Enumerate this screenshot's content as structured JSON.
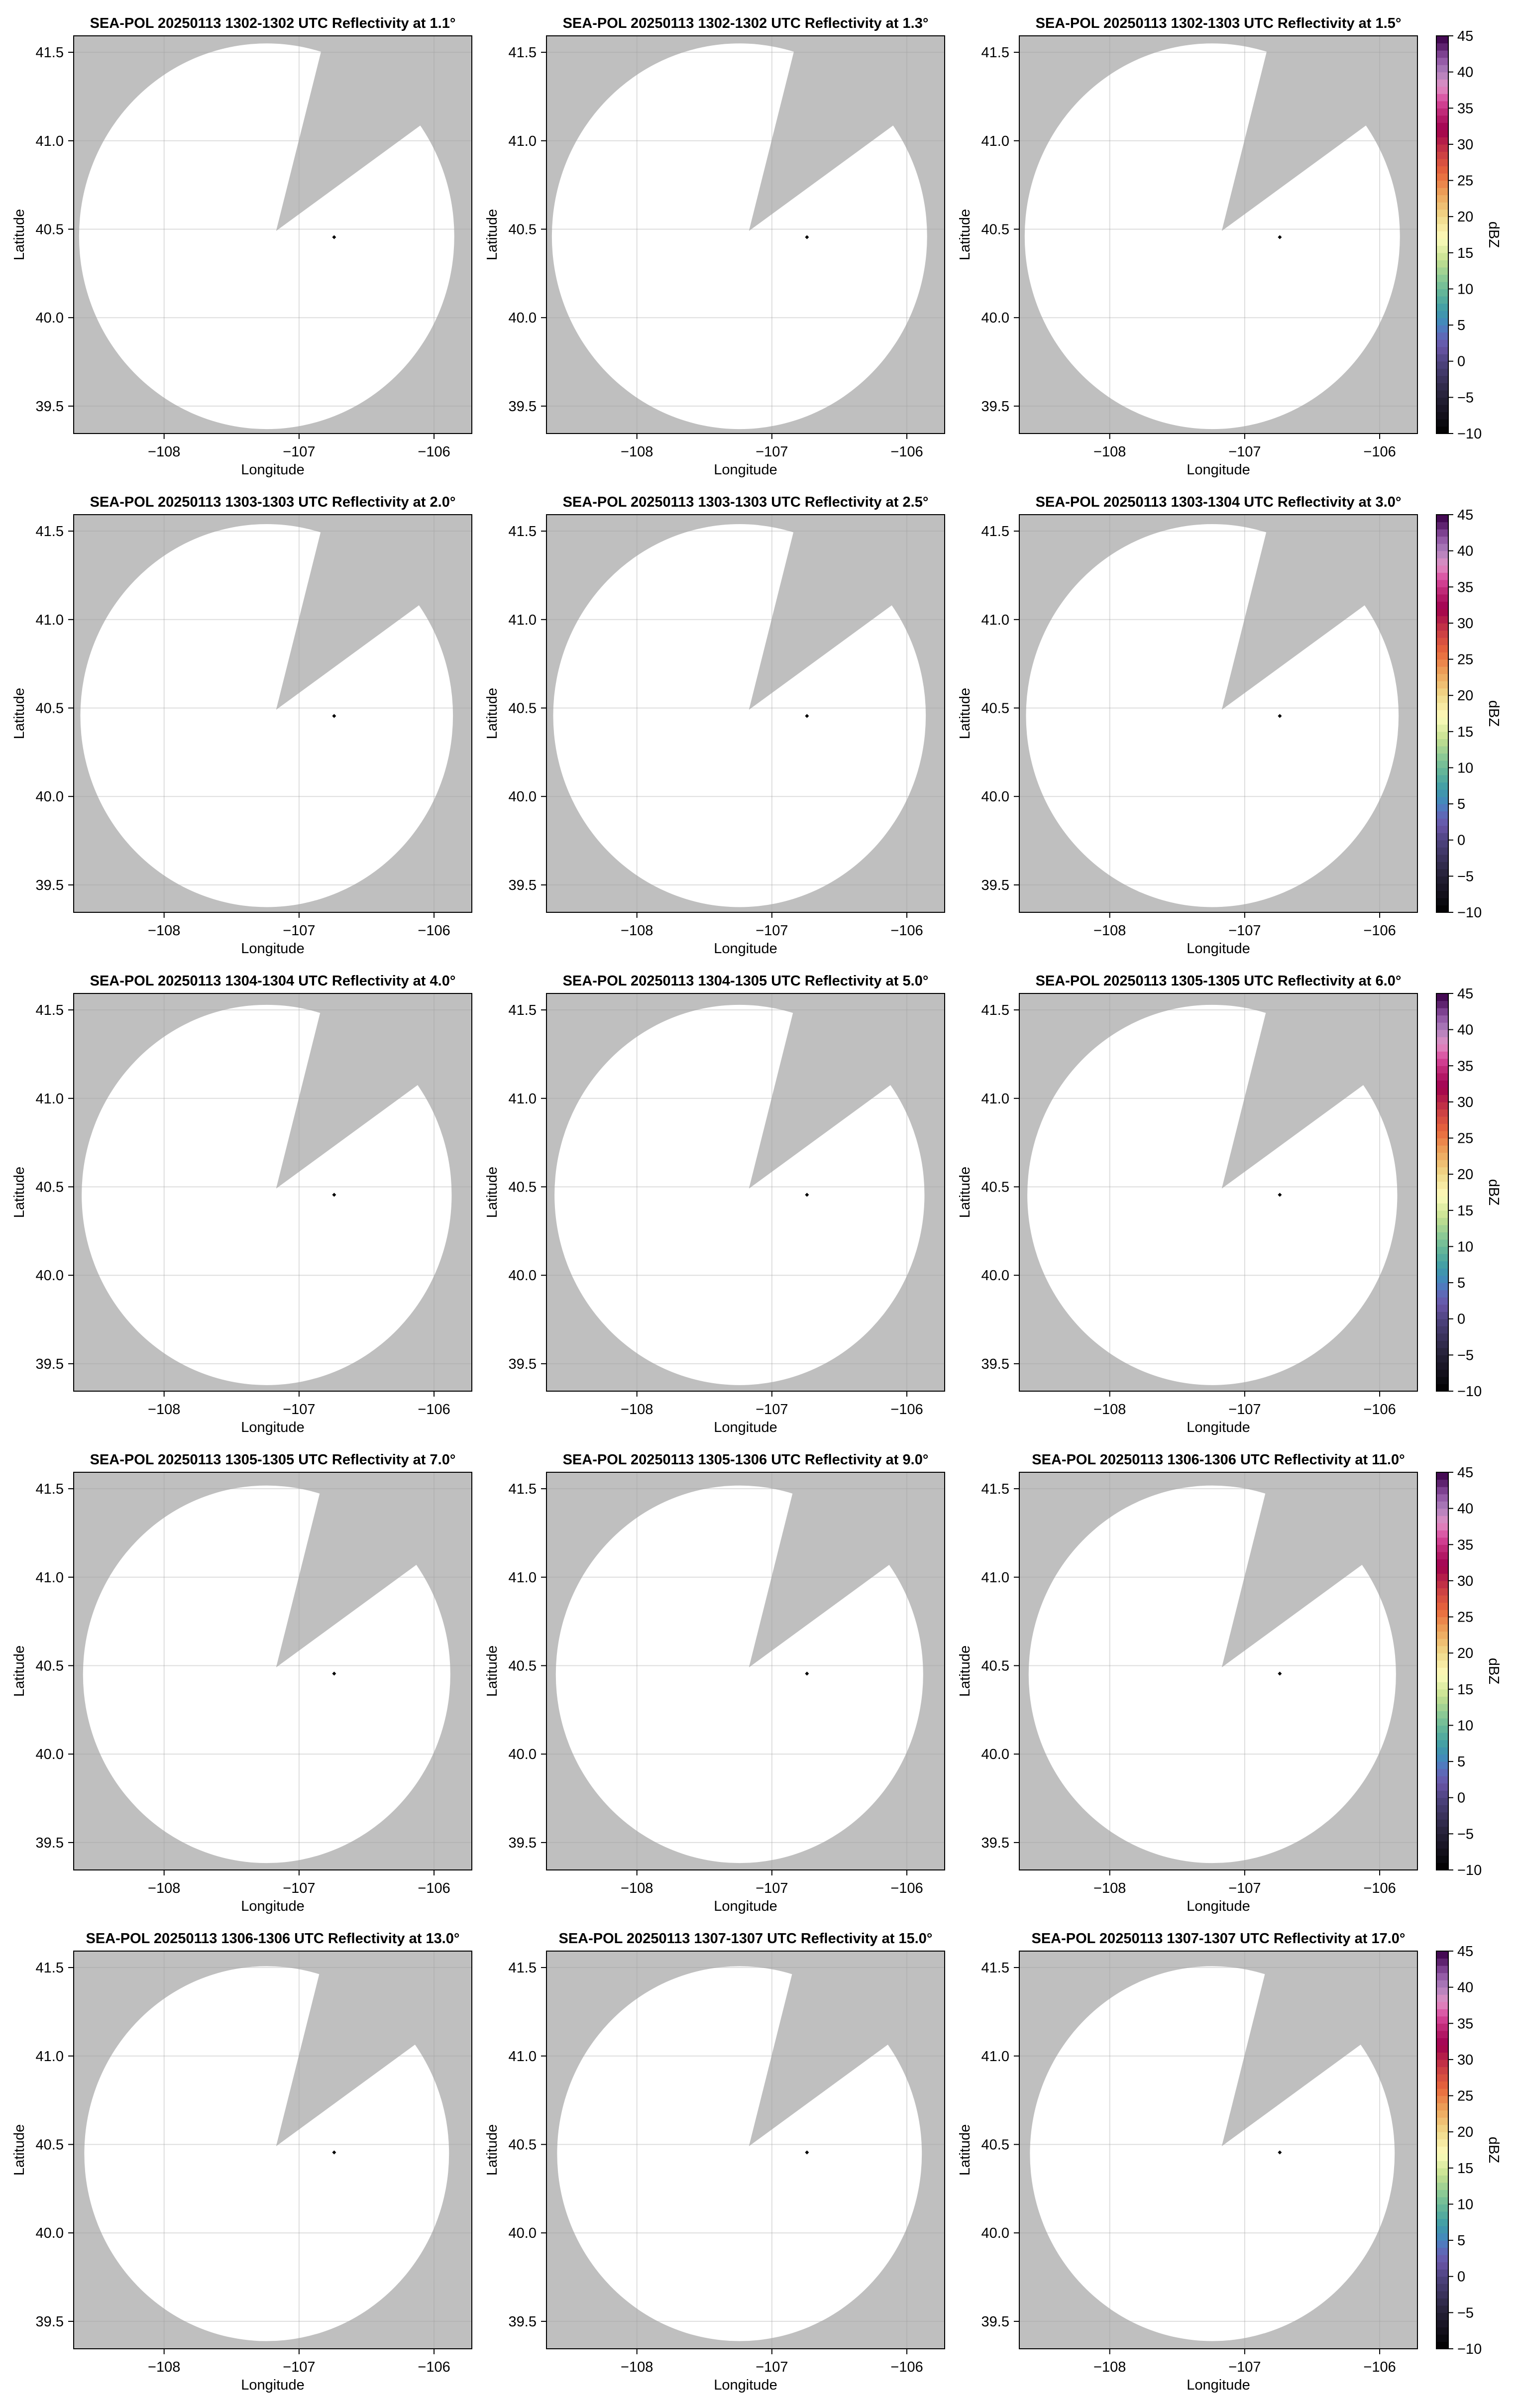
{
  "chart_data": {
    "type": "heatmap",
    "layout": "5 rows x 3 columns of radar PPI maps",
    "xlabel": "Longitude",
    "ylabel": "Latitude",
    "xlim": [
      -108.67,
      -105.72
    ],
    "ylim": [
      39.345,
      41.593
    ],
    "xticks": [
      -108,
      -107,
      -106
    ],
    "xtick_labels": [
      "−108",
      "−107",
      "−106"
    ],
    "yticks": [
      39.5,
      40.0,
      40.5,
      41.0,
      41.5
    ],
    "ytick_labels": [
      "39.5",
      "40.0",
      "40.5",
      "41.0",
      "41.5"
    ],
    "grid": true,
    "radar_location": {
      "lon": -106.74,
      "lat": 40.455
    },
    "scan_center": {
      "lon": -107.24,
      "lat": 40.46
    },
    "blocked_sector_apex": {
      "lon": -107.17,
      "lat": 40.49
    },
    "blocked_sector_edges": [
      {
        "lon": -106.83,
        "lat": 41.525
      },
      {
        "lon": -106.05,
        "lat": 41.115
      }
    ],
    "panels": [
      {
        "title": "SEA-POL 20250113 1302-1302 UTC Reflectivity at 1.1°",
        "elevation": 1.1
      },
      {
        "title": "SEA-POL 20250113 1302-1302 UTC Reflectivity at 1.3°",
        "elevation": 1.3
      },
      {
        "title": "SEA-POL 20250113 1302-1303 UTC Reflectivity at 1.5°",
        "elevation": 1.5
      },
      {
        "title": "SEA-POL 20250113 1303-1303 UTC Reflectivity at 2.0°",
        "elevation": 2.0
      },
      {
        "title": "SEA-POL 20250113 1303-1303 UTC Reflectivity at 2.5°",
        "elevation": 2.5
      },
      {
        "title": "SEA-POL 20250113 1303-1304 UTC Reflectivity at 3.0°",
        "elevation": 3.0
      },
      {
        "title": "SEA-POL 20250113 1304-1304 UTC Reflectivity at 4.0°",
        "elevation": 4.0
      },
      {
        "title": "SEA-POL 20250113 1304-1305 UTC Reflectivity at 5.0°",
        "elevation": 5.0
      },
      {
        "title": "SEA-POL 20250113 1305-1305 UTC Reflectivity at 6.0°",
        "elevation": 6.0
      },
      {
        "title": "SEA-POL 20250113 1305-1305 UTC Reflectivity at 7.0°",
        "elevation": 7.0
      },
      {
        "title": "SEA-POL 20250113 1305-1306 UTC Reflectivity at 9.0°",
        "elevation": 9.0
      },
      {
        "title": "SEA-POL 20250113 1306-1306 UTC Reflectivity at 11.0°",
        "elevation": 11.0
      },
      {
        "title": "SEA-POL 20250113 1306-1306 UTC Reflectivity at 13.0°",
        "elevation": 13.0
      },
      {
        "title": "SEA-POL 20250113 1307-1307 UTC Reflectivity at 15.0°",
        "elevation": 15.0
      },
      {
        "title": "SEA-POL 20250113 1307-1307 UTC Reflectivity at 17.0°",
        "elevation": 17.0
      }
    ],
    "colorbar": {
      "label": "dBZ",
      "range": [
        -10,
        45
      ],
      "step": 1,
      "ticks": [
        -10,
        -5,
        0,
        5,
        10,
        15,
        20,
        25,
        30,
        35,
        40,
        45
      ],
      "tick_labels": [
        "−10",
        "−5",
        "0",
        "5",
        "10",
        "15",
        "20",
        "25",
        "30",
        "35",
        "40",
        "45"
      ],
      "color_stops": [
        [
          -10,
          "#000000"
        ],
        [
          -5,
          "#252036"
        ],
        [
          0,
          "#4e4480"
        ],
        [
          2,
          "#6a55a8"
        ],
        [
          4,
          "#5a70bc"
        ],
        [
          5,
          "#4584c0"
        ],
        [
          7,
          "#3e9aa8"
        ],
        [
          9,
          "#5bb09a"
        ],
        [
          11,
          "#80c496"
        ],
        [
          14,
          "#c4e090"
        ],
        [
          17,
          "#fdfbbb"
        ],
        [
          20,
          "#f0d88a"
        ],
        [
          23,
          "#eda65c"
        ],
        [
          26,
          "#e8683c"
        ],
        [
          29,
          "#c83a44"
        ],
        [
          32,
          "#a0004e"
        ],
        [
          34,
          "#b8206c"
        ],
        [
          36,
          "#d8489c"
        ],
        [
          38,
          "#e090c4"
        ],
        [
          40,
          "#ae80bc"
        ],
        [
          42,
          "#8c50a0"
        ],
        [
          44,
          "#501460"
        ],
        [
          45,
          "#3a0048"
        ]
      ]
    },
    "colors": {
      "no_data": "#bfbfbf",
      "scan_area": "#ffffff",
      "grid": "#a0a0a0",
      "radar_marker": "#000000"
    }
  }
}
